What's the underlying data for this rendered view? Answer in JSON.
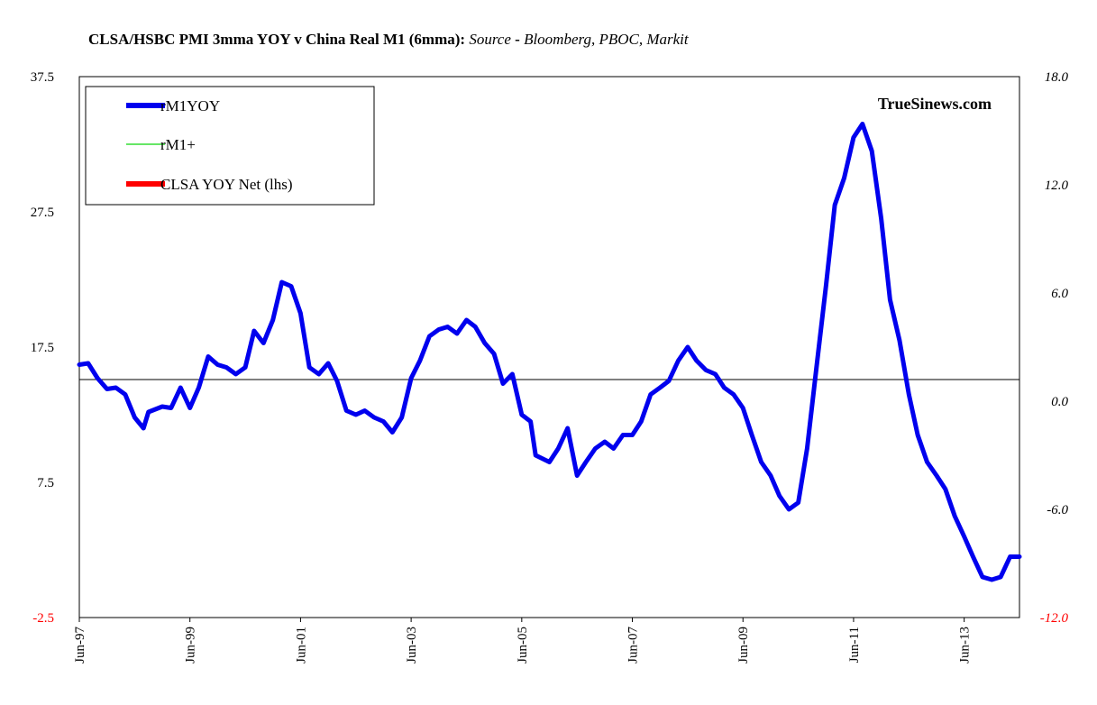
{
  "title": {
    "main": "CLSA/HSBC PMI 3mma YOY  v China Real M1 (6mma):",
    "source_label": "Source",
    "source_dash": "-",
    "source_list": "Bloomberg, PBOC, Markit"
  },
  "watermark": "TrueSinews.com",
  "chart_data": {
    "type": "line",
    "left_axis": {
      "min": -2.5,
      "max": 37.5,
      "ticks": [
        "37.5",
        "27.5",
        "17.5",
        "7.5",
        "-2.5"
      ],
      "red_tick": "-2.5"
    },
    "right_axis": {
      "min": -12.0,
      "max": 18.0,
      "ticks": [
        "18.0",
        "12.0",
        "6.0",
        "0.0",
        "-6.0",
        "-12.0"
      ],
      "red_tick": "-12.0"
    },
    "reference_line": {
      "axis": "right",
      "value": 1.2
    },
    "x_range": [
      1997.42,
      2014.42
    ],
    "x_tick_labels": [
      {
        "label": "Jun-97",
        "x": 1997.42
      },
      {
        "label": "Jun-99",
        "x": 1999.42
      },
      {
        "label": "Jun-01",
        "x": 2001.42
      },
      {
        "label": "Jun-03",
        "x": 2003.42
      },
      {
        "label": "Jun-05",
        "x": 2005.42
      },
      {
        "label": "Jun-07",
        "x": 2007.42
      },
      {
        "label": "Jun-09",
        "x": 2009.42
      },
      {
        "label": "Jun-11",
        "x": 2011.42
      },
      {
        "label": "Jun-13",
        "x": 2013.42
      }
    ],
    "legend_position": "top-left",
    "series": [
      {
        "name": "rM1YOY",
        "axis": "left",
        "color": "#0000ee",
        "points": [
          [
            1997.42,
            16.2
          ],
          [
            1997.58,
            16.3
          ],
          [
            1997.75,
            15.2
          ],
          [
            1997.92,
            14.4
          ],
          [
            1998.08,
            14.5
          ],
          [
            1998.25,
            14.0
          ],
          [
            1998.42,
            12.3
          ],
          [
            1998.58,
            11.5
          ],
          [
            1998.67,
            12.7
          ],
          [
            1998.92,
            13.1
          ],
          [
            1999.08,
            13.0
          ],
          [
            1999.25,
            14.5
          ],
          [
            1999.42,
            13.0
          ],
          [
            1999.58,
            14.5
          ],
          [
            1999.75,
            16.8
          ],
          [
            1999.92,
            16.2
          ],
          [
            2000.08,
            16.0
          ],
          [
            2000.25,
            15.5
          ],
          [
            2000.42,
            16.0
          ],
          [
            2000.58,
            18.7
          ],
          [
            2000.75,
            17.8
          ],
          [
            2000.92,
            19.5
          ],
          [
            2001.08,
            22.3
          ],
          [
            2001.25,
            22.0
          ],
          [
            2001.42,
            20.0
          ],
          [
            2001.58,
            16.0
          ],
          [
            2001.75,
            15.5
          ],
          [
            2001.92,
            16.3
          ],
          [
            2002.08,
            15.0
          ],
          [
            2002.25,
            12.8
          ],
          [
            2002.42,
            12.5
          ],
          [
            2002.58,
            12.8
          ],
          [
            2002.75,
            12.3
          ],
          [
            2002.92,
            12.0
          ],
          [
            2003.08,
            11.2
          ],
          [
            2003.25,
            12.3
          ],
          [
            2003.42,
            15.2
          ],
          [
            2003.58,
            16.5
          ],
          [
            2003.75,
            18.3
          ],
          [
            2003.92,
            18.8
          ],
          [
            2004.08,
            19.0
          ],
          [
            2004.25,
            18.5
          ],
          [
            2004.42,
            19.5
          ],
          [
            2004.58,
            19.0
          ],
          [
            2004.75,
            17.8
          ],
          [
            2004.92,
            17.0
          ],
          [
            2005.08,
            14.8
          ],
          [
            2005.25,
            15.5
          ],
          [
            2005.42,
            12.5
          ],
          [
            2005.58,
            12.0
          ],
          [
            2005.67,
            9.5
          ],
          [
            2005.92,
            9.0
          ],
          [
            2006.08,
            10.0
          ],
          [
            2006.25,
            11.5
          ],
          [
            2006.42,
            8.0
          ],
          [
            2006.58,
            9.0
          ],
          [
            2006.75,
            10.0
          ],
          [
            2006.92,
            10.5
          ],
          [
            2007.08,
            10.0
          ],
          [
            2007.25,
            11.0
          ],
          [
            2007.42,
            11.0
          ],
          [
            2007.58,
            12.0
          ],
          [
            2007.75,
            14.0
          ],
          [
            2007.92,
            14.5
          ],
          [
            2008.08,
            15.0
          ],
          [
            2008.25,
            16.5
          ],
          [
            2008.42,
            17.5
          ],
          [
            2008.58,
            16.5
          ],
          [
            2008.75,
            15.8
          ],
          [
            2008.92,
            15.5
          ],
          [
            2009.08,
            14.5
          ],
          [
            2009.25,
            14.0
          ],
          [
            2009.42,
            13.0
          ],
          [
            2009.58,
            11.0
          ],
          [
            2009.75,
            9.0
          ],
          [
            2009.92,
            8.0
          ],
          [
            2010.08,
            6.5
          ],
          [
            2010.25,
            5.5
          ],
          [
            2010.42,
            6.0
          ],
          [
            2010.58,
            10.0
          ],
          [
            2010.75,
            16.0
          ],
          [
            2010.92,
            22.0
          ],
          [
            2011.08,
            28.0
          ],
          [
            2011.25,
            30.0
          ],
          [
            2011.42,
            33.0
          ],
          [
            2011.58,
            34.0
          ],
          [
            2011.75,
            32.0
          ],
          [
            2011.92,
            27.0
          ],
          [
            2012.08,
            21.0
          ],
          [
            2012.25,
            18.0
          ],
          [
            2012.42,
            14.0
          ],
          [
            2012.58,
            11.0
          ],
          [
            2012.75,
            9.0
          ],
          [
            2012.92,
            8.0
          ],
          [
            2013.08,
            7.0
          ],
          [
            2013.25,
            5.0
          ],
          [
            2013.42,
            3.5
          ],
          [
            2013.58,
            2.0
          ],
          [
            2013.75,
            0.5
          ],
          [
            2013.92,
            0.3
          ],
          [
            2014.08,
            0.5
          ],
          [
            2014.25,
            2.0
          ],
          [
            2014.42,
            2.0
          ]
        ]
      },
      {
        "name": "rM1+",
        "axis": "left",
        "color": "#33dd33",
        "points": []
      },
      {
        "name": "CLSA YOY Net (lhs)",
        "axis": "right",
        "color": "#ff0000",
        "points": []
      }
    ]
  }
}
